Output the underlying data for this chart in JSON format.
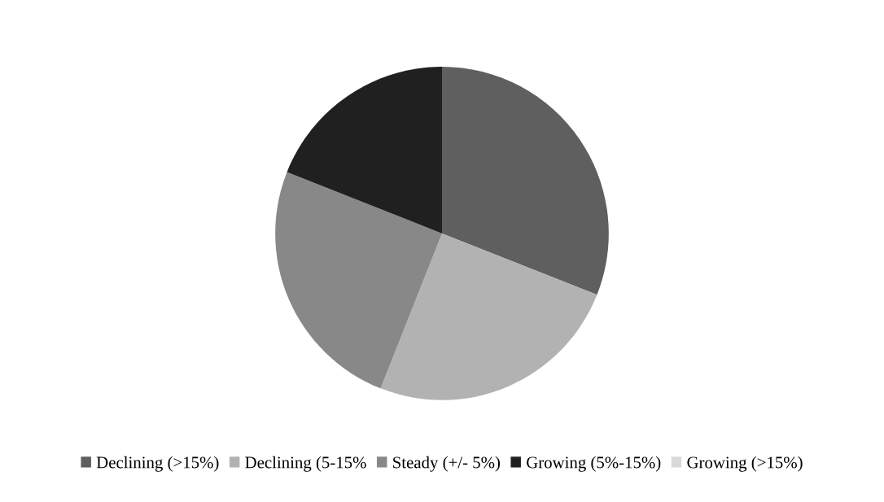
{
  "chart_data": {
    "type": "pie",
    "categories": [
      "Declining (>15%)",
      "Declining (5-15%",
      "Steady (+/- 5%)",
      "Growing (5%-15%)",
      "Growing (>15%)"
    ],
    "values": [
      31,
      25,
      25,
      19,
      0
    ],
    "colors": [
      "#5f5f5f",
      "#b2b2b2",
      "#888888",
      "#202020",
      "#d9d9d9"
    ],
    "legend": "bottom"
  }
}
